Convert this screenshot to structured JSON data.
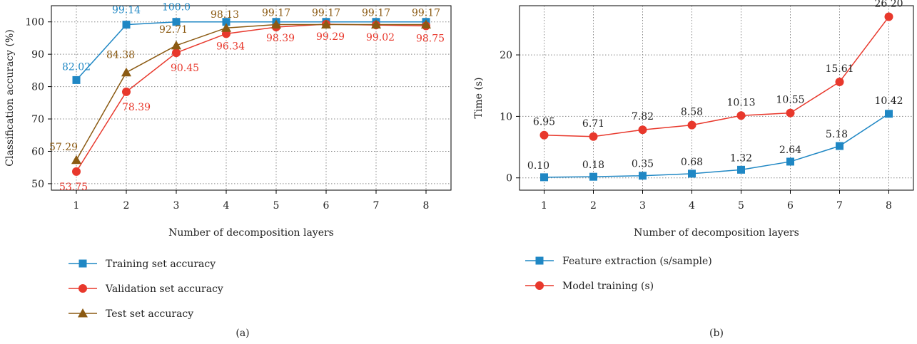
{
  "chart_data": [
    {
      "panel_label": "(a)",
      "type": "line",
      "xlabel": "Number of decomposition layers",
      "ylabel": "Classification accuracy (%)",
      "x": [
        1,
        2,
        3,
        4,
        5,
        6,
        7,
        8
      ],
      "xlim": [
        0.5,
        8.5
      ],
      "ylim": [
        48,
        105
      ],
      "yticks": [
        50,
        60,
        70,
        80,
        90,
        100
      ],
      "grid": true,
      "legend_position": "below",
      "series": [
        {
          "name": "Training set accuracy",
          "marker": "square",
          "color": "#1f87c4",
          "values": [
            82.02,
            99.14,
            100.0,
            100.0,
            100.0,
            100.0,
            100.0,
            100.0
          ],
          "labels": [
            "82.02",
            "99.14",
            "100.0",
            "",
            "",
            "",
            "",
            ""
          ]
        },
        {
          "name": "Validation set accuracy",
          "marker": "circle",
          "color": "#e8382c",
          "values": [
            53.75,
            78.39,
            90.45,
            96.34,
            98.39,
            99.29,
            99.02,
            98.75
          ],
          "labels": [
            "53.75",
            "78.39",
            "90.45",
            "96.34",
            "98.39",
            "99.29",
            "99.02",
            "98.75"
          ]
        },
        {
          "name": "Test set accuracy",
          "marker": "triangle",
          "color": "#8b5a12",
          "values": [
            57.29,
            84.38,
            92.71,
            98.13,
            99.17,
            99.17,
            99.17,
            99.17
          ],
          "labels": [
            "57.29",
            "84.38",
            "92.71",
            "98.13",
            "99.17",
            "99.17",
            "99.17",
            "99.17"
          ]
        }
      ]
    },
    {
      "panel_label": "(b)",
      "type": "line",
      "xlabel": "Number of decomposition layers",
      "ylabel": "Time (s)",
      "x": [
        1,
        2,
        3,
        4,
        5,
        6,
        7,
        8
      ],
      "xlim": [
        0.5,
        8.5
      ],
      "ylim": [
        -2,
        28
      ],
      "yticks": [
        0,
        10,
        20
      ],
      "grid": true,
      "legend_position": "below",
      "series": [
        {
          "name": "Feature extraction (s/sample)",
          "marker": "square",
          "color": "#1f87c4",
          "values": [
            0.1,
            0.18,
            0.35,
            0.68,
            1.32,
            2.64,
            5.18,
            10.42
          ],
          "labels": [
            "0.10",
            "0.18",
            "0.35",
            "0.68",
            "1.32",
            "2.64",
            "5.18",
            "10.42"
          ]
        },
        {
          "name": "Model training (s)",
          "marker": "circle",
          "color": "#e8382c",
          "values": [
            6.95,
            6.71,
            7.82,
            8.58,
            10.13,
            10.55,
            15.61,
            26.2
          ],
          "labels": [
            "6.95",
            "6.71",
            "7.82",
            "8.58",
            "10.13",
            "10.55",
            "15.61",
            "26.20"
          ]
        }
      ]
    }
  ]
}
